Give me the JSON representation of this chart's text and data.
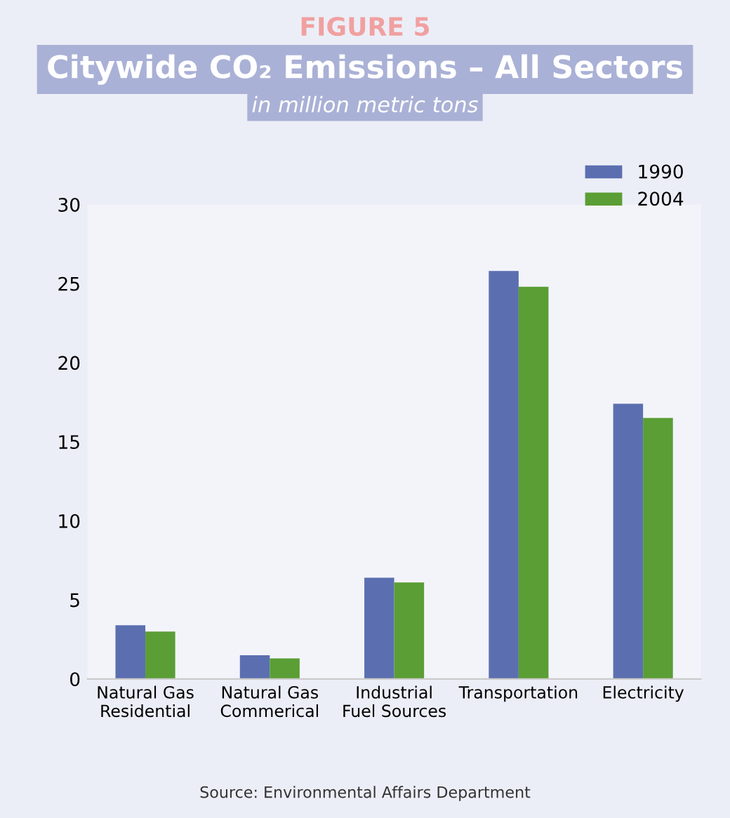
{
  "chart_data": {
    "type": "bar",
    "title": "Citywide CO₂ Emissions – All Sectors",
    "subtitle": "in million metric tons",
    "annotations": [
      "FIGURE 5",
      "Source: Environmental Affairs Department"
    ],
    "categories": [
      "Natural Gas\nResidential",
      "Natural Gas\nCommerical",
      "Industrial\nFuel Sources",
      "Transportation",
      "Electricity"
    ],
    "series": [
      {
        "name": "1990",
        "color": "#5b6fb0",
        "values": [
          3.4,
          1.5,
          6.4,
          25.8,
          17.4
        ]
      },
      {
        "name": "2004",
        "color": "#5a9e35",
        "values": [
          3.0,
          1.3,
          6.1,
          24.8,
          16.5
        ]
      }
    ],
    "ylim": [
      0,
      30
    ],
    "yticks": [
      0,
      5,
      10,
      15,
      20,
      25,
      30
    ],
    "grid": false,
    "legend": "top right"
  }
}
